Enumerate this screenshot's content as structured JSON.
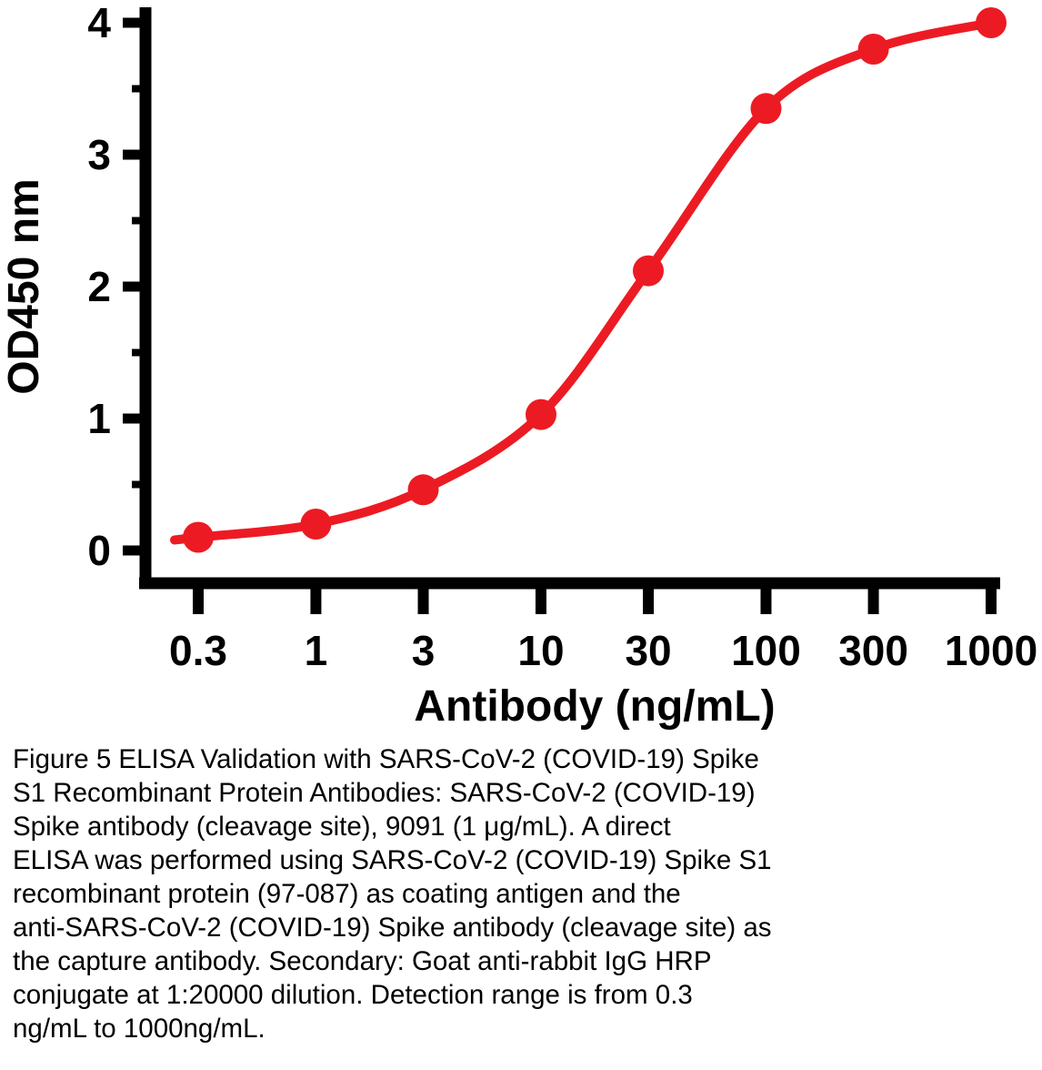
{
  "figure": {
    "caption_lines": [
      "Figure 5 ELISA Validation with SARS-CoV-2 (COVID-19) Spike",
      "S1 Recombinant Protein Antibodies: SARS-CoV-2 (COVID-19)",
      "Spike antibody (cleavage site), 9091 (1 μg/mL). A direct",
      "ELISA was performed using SARS-CoV-2 (COVID-19) Spike S1",
      "recombinant protein (97-087) as coating antigen and the",
      "anti-SARS-CoV-2 (COVID-19) Spike antibody (cleavage site) as",
      "the capture antibody. Secondary: Goat anti-rabbit IgG HRP",
      "conjugate at 1:20000 dilution. Detection range is from 0.3",
      "ng/mL to 1000ng/mL."
    ]
  },
  "chart_data": {
    "type": "line",
    "x": [
      0.3,
      1,
      3,
      10,
      30,
      100,
      300,
      1000
    ],
    "values": [
      0.1,
      0.2,
      0.46,
      1.03,
      2.12,
      3.35,
      3.8,
      4.0
    ],
    "title": "",
    "xlabel": "Antibody (ng/mL)",
    "ylabel": "OD450 nm",
    "x_scale": "log",
    "xlim": [
      0.3,
      1000
    ],
    "ylim": [
      0,
      4
    ],
    "x_tick_labels": [
      "0.3",
      "1",
      "3",
      "10",
      "30",
      "100",
      "300",
      "1000"
    ],
    "y_tick_labels": [
      "0",
      "1",
      "2",
      "3",
      "4"
    ],
    "y_minor_step": 0.5,
    "grid": false,
    "legend": "none",
    "line_color": "#ec1b23",
    "marker_color": "#ec1b23",
    "axis_color": "#000000"
  }
}
